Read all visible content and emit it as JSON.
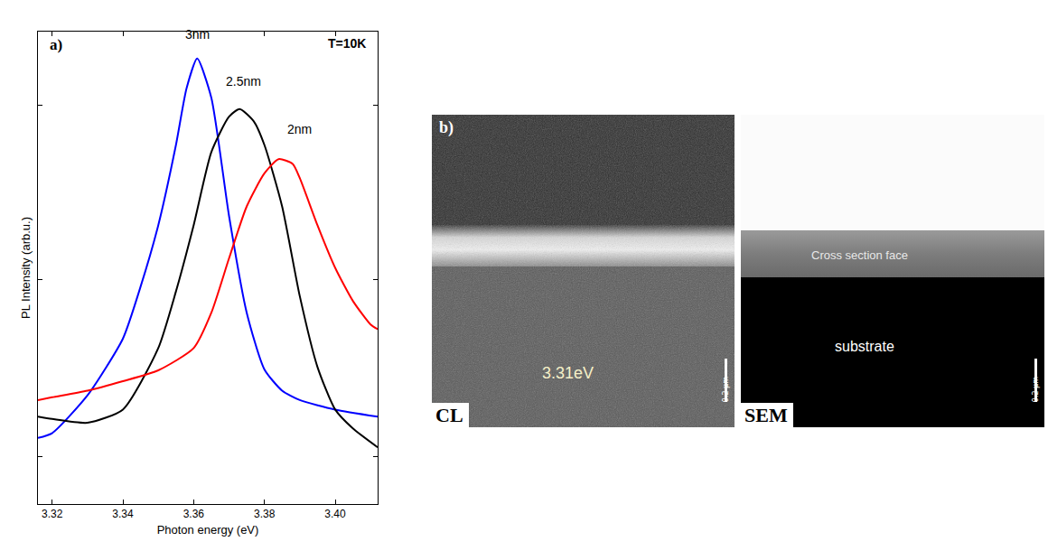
{
  "chart_data": {
    "type": "line",
    "panel_label": "a)",
    "note": "T=10K",
    "x_label": "Photon energy (eV)",
    "y_label": "PL Intensity (arb.u.)",
    "xlim": [
      3.316,
      3.412
    ],
    "xticks": [
      3.32,
      3.34,
      3.36,
      3.38,
      {
        "value": 3.4,
        "label": "3.40"
      }
    ],
    "ylim": [
      0,
      10
    ],
    "yticks": [
      1.0,
      4.75,
      8.45
    ],
    "tick_labels": "x",
    "grid": false,
    "series": [
      {
        "name": "3nm",
        "color": "#0000ff",
        "x": [
          3.316,
          3.32,
          3.33,
          3.34,
          3.345,
          3.35,
          3.355,
          3.358,
          3.361,
          3.365,
          3.37,
          3.375,
          3.38,
          3.385,
          3.39,
          3.4,
          3.412
        ],
        "values": [
          1.4,
          1.5,
          2.3,
          3.5,
          4.6,
          5.9,
          7.6,
          8.8,
          9.43,
          8.6,
          6.1,
          4.05,
          2.85,
          2.4,
          2.2,
          2.0,
          1.85
        ],
        "label_at": [
          3.361,
          9.75
        ]
      },
      {
        "name": "2.5nm",
        "color": "#000000",
        "x": [
          3.316,
          3.32,
          3.33,
          3.34,
          3.35,
          3.355,
          3.36,
          3.365,
          3.37,
          3.373,
          3.377,
          3.38,
          3.385,
          3.39,
          3.395,
          3.4,
          3.405,
          3.412
        ],
        "values": [
          1.85,
          1.8,
          1.72,
          2.0,
          3.3,
          4.5,
          5.9,
          7.45,
          8.2,
          8.36,
          8.1,
          7.6,
          6.3,
          4.4,
          2.9,
          2.0,
          1.6,
          1.2
        ],
        "label_at": [
          3.374,
          8.75
        ]
      },
      {
        "name": "2nm",
        "color": "#ff0000",
        "x": [
          3.316,
          3.32,
          3.33,
          3.34,
          3.35,
          3.36,
          3.365,
          3.37,
          3.375,
          3.38,
          3.384,
          3.388,
          3.39,
          3.395,
          3.4,
          3.405,
          3.41,
          3.412
        ],
        "values": [
          2.2,
          2.26,
          2.4,
          2.6,
          2.83,
          3.3,
          4.05,
          5.2,
          6.3,
          7.0,
          7.3,
          7.2,
          6.9,
          5.9,
          5.0,
          4.3,
          3.8,
          3.7
        ],
        "label_at": [
          3.39,
          7.75
        ]
      }
    ]
  },
  "panel_b": {
    "label": "b)",
    "images": [
      {
        "tag": "CL",
        "annotation": "3.31eV",
        "scale_bar": "0.2 µm"
      },
      {
        "tag": "SEM",
        "regions": [
          "Cross section face",
          "substrate"
        ],
        "scale_bar": "0.2 µm"
      }
    ]
  }
}
